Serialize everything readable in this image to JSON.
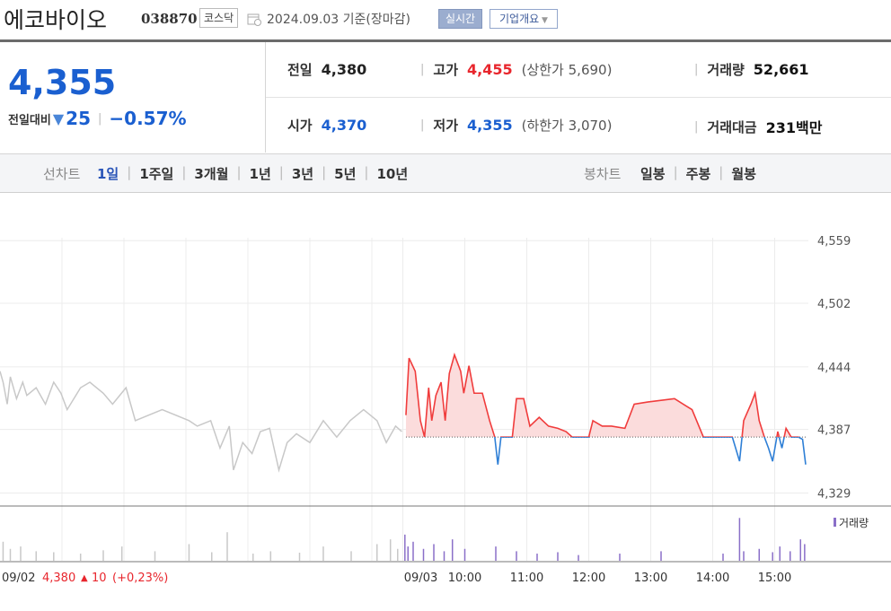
{
  "header": {
    "name": "에코바이오",
    "code": "038870",
    "market": "코스닥",
    "date": "2024.09.03",
    "basis": "기준(장마감)",
    "realtime": "실시간",
    "company": "기업개요"
  },
  "summary": {
    "price": "4,355",
    "change_label": "전일대비",
    "change": "25",
    "change_pct": "−0.57%",
    "items": [
      {
        "label": "전일",
        "value": "4,380",
        "color": "#222222"
      },
      {
        "label": "고가",
        "value": "4,455",
        "note": "(상한가 5,690)",
        "color": "#e8262d"
      },
      {
        "label": "거래량",
        "value": "52,661",
        "color": "#111111"
      },
      {
        "label": "시가",
        "value": "4,370",
        "color": "#1a5fd0"
      },
      {
        "label": "저가",
        "value": "4,355",
        "note": "(하한가 3,070)",
        "color": "#1a5fd0"
      },
      {
        "label": "거래대금",
        "value": "231백만",
        "color": "#111111"
      }
    ]
  },
  "toolbar": {
    "line_label": "선차트",
    "periods": [
      "1일",
      "1주일",
      "3개월",
      "1년",
      "3년",
      "5년",
      "10년"
    ],
    "active_period": 0,
    "candle_label": "봉차트",
    "candles": [
      "일봉",
      "주봉",
      "월봉"
    ]
  },
  "chart_data": {
    "type": "line",
    "xlim": [
      0,
      780
    ],
    "ylim": [
      4318,
      4578
    ],
    "grid": true,
    "yticks": [
      {
        "value": 4559,
        "label": "4,559"
      },
      {
        "value": 4502,
        "label": "4,502"
      },
      {
        "value": 4444,
        "label": "4,444"
      },
      {
        "value": 4387,
        "label": "4,387"
      },
      {
        "value": 4329,
        "label": "4,329"
      }
    ],
    "xticks": [
      {
        "value": 390,
        "label": "09/03"
      },
      {
        "value": 450,
        "label": "10:00"
      },
      {
        "value": 510,
        "label": "11:00"
      },
      {
        "value": 570,
        "label": "12:00"
      },
      {
        "value": 630,
        "label": "13:00"
      },
      {
        "value": 690,
        "label": "14:00"
      },
      {
        "value": 750,
        "label": "15:00"
      }
    ],
    "xgrid": [
      60,
      120,
      180,
      240,
      300,
      360
    ],
    "base": 4380,
    "previous": {
      "color": "#c8c8c8",
      "x": [
        0,
        3,
        7,
        10,
        16,
        22,
        26,
        35,
        44,
        52,
        59,
        65,
        78,
        87,
        100,
        109,
        122,
        131,
        144,
        157,
        183,
        191,
        204,
        213,
        222,
        226,
        235,
        244,
        252,
        261,
        270,
        278,
        287,
        300,
        313,
        326,
        339,
        352,
        365,
        374,
        383,
        389
      ],
      "values": [
        4440,
        4430,
        4410,
        4435,
        4415,
        4430,
        4418,
        4425,
        4410,
        4430,
        4420,
        4405,
        4425,
        4430,
        4420,
        4410,
        4425,
        4395,
        4400,
        4405,
        4395,
        4390,
        4395,
        4370,
        4390,
        4350,
        4375,
        4365,
        4385,
        4388,
        4350,
        4375,
        4383,
        4375,
        4395,
        4380,
        4395,
        4405,
        4395,
        4375,
        4390,
        4385
      ]
    },
    "today": {
      "up_color": "#f03c3c",
      "down_color": "#2e7fd6",
      "fill": "#fbdcdc",
      "x": [
        393,
        396,
        402,
        407,
        411,
        415,
        418,
        422,
        427,
        431,
        435,
        440,
        446,
        449,
        454,
        459,
        467,
        474,
        479,
        482,
        485,
        496,
        500,
        507,
        513,
        522,
        531,
        540,
        548,
        554,
        570,
        574,
        583,
        592,
        605,
        614,
        627,
        653,
        670,
        681,
        696,
        709,
        716,
        720,
        727,
        731,
        735,
        740,
        744,
        748,
        753,
        757,
        761,
        766,
        773,
        777,
        780
      ],
      "values": [
        4400,
        4452,
        4440,
        4395,
        4380,
        4425,
        4395,
        4418,
        4430,
        4395,
        4438,
        4455,
        4440,
        4420,
        4445,
        4420,
        4420,
        4395,
        4380,
        4355,
        4380,
        4380,
        4415,
        4415,
        4390,
        4398,
        4390,
        4388,
        4385,
        4380,
        4380,
        4395,
        4390,
        4390,
        4388,
        4410,
        4412,
        4415,
        4405,
        4380,
        4380,
        4380,
        4358,
        4395,
        4410,
        4420,
        4395,
        4380,
        4370,
        4358,
        4385,
        4370,
        4388,
        4380,
        4380,
        4378,
        4355
      ]
    },
    "volume": {
      "name": "거래량",
      "color": "#8a6fc8",
      "prev_color": "#c8c8c8",
      "ylim": [
        0,
        1000
      ],
      "prev_x": [
        3,
        10,
        20,
        35,
        52,
        78,
        100,
        118,
        150,
        183,
        205,
        220,
        245,
        262,
        290,
        313,
        340,
        365,
        378,
        385
      ],
      "prev_values": [
        400,
        250,
        300,
        200,
        180,
        150,
        220,
        300,
        200,
        350,
        180,
        600,
        150,
        200,
        170,
        300,
        200,
        350,
        450,
        250
      ],
      "x": [
        392,
        395,
        400,
        410,
        420,
        430,
        438,
        450,
        480,
        500,
        520,
        540,
        560,
        600,
        640,
        700,
        716,
        720,
        735,
        748,
        755,
        765,
        775,
        779
      ],
      "values": [
        550,
        300,
        400,
        250,
        350,
        200,
        450,
        250,
        300,
        200,
        150,
        180,
        120,
        150,
        200,
        150,
        900,
        200,
        250,
        180,
        300,
        200,
        450,
        350
      ]
    },
    "prev_day": {
      "date": "09/02",
      "close": "4,380",
      "change": "10",
      "change_pct": "(+0,23%)"
    }
  }
}
